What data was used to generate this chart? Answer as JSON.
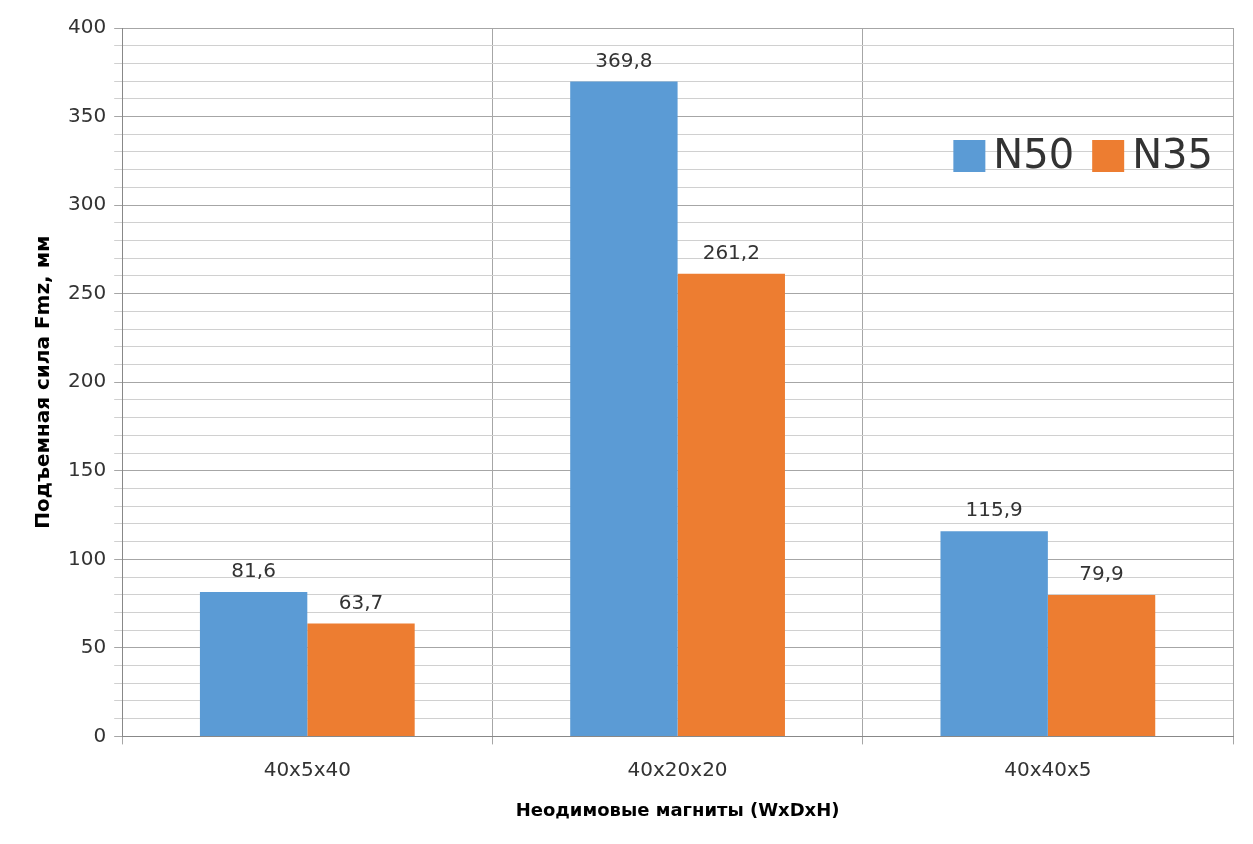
{
  "chart_data": {
    "type": "bar",
    "xlabel": "Неодимовые магниты (WxDxH)",
    "ylabel": "Подъемная сила Fmz, мм",
    "categories": [
      "40x5x40",
      "40x20x20",
      "40x40x5"
    ],
    "series": [
      {
        "name": "N50",
        "color": "#5b9bd5",
        "values": [
          81.6,
          369.8,
          115.9
        ],
        "value_labels": [
          "81,6",
          "369,8",
          "115,9"
        ]
      },
      {
        "name": "N35",
        "color": "#ed7d31",
        "values": [
          63.7,
          261.2,
          79.9
        ],
        "value_labels": [
          "63,7",
          "261,2",
          "79,9"
        ]
      }
    ],
    "ylim": [
      0,
      400
    ],
    "yticks": [
      0,
      {
        "value": 10,
        "label": null
      },
      {
        "value": 20,
        "label": null
      },
      {
        "value": 30,
        "label": null
      },
      {
        "value": 40,
        "label": null
      },
      50,
      {
        "value": 60,
        "label": null
      },
      {
        "value": 70,
        "label": null
      },
      {
        "value": 80,
        "label": null
      },
      {
        "value": 90,
        "label": null
      },
      100,
      {
        "value": 110,
        "label": null
      },
      {
        "value": 120,
        "label": null
      },
      {
        "value": 130,
        "label": null
      },
      {
        "value": 140,
        "label": null
      },
      150,
      {
        "value": 160,
        "label": null
      },
      {
        "value": 170,
        "label": null
      },
      {
        "value": 180,
        "label": null
      },
      {
        "value": 190,
        "label": null
      },
      200,
      {
        "value": 210,
        "label": null
      },
      {
        "value": 220,
        "label": null
      },
      {
        "value": 230,
        "label": null
      },
      {
        "value": 240,
        "label": null
      },
      250,
      {
        "value": 260,
        "label": null
      },
      {
        "value": 270,
        "label": null
      },
      {
        "value": 280,
        "label": null
      },
      {
        "value": 290,
        "label": null
      },
      300,
      {
        "value": 310,
        "label": null
      },
      {
        "value": 320,
        "label": null
      },
      {
        "value": 330,
        "label": null
      },
      {
        "value": 340,
        "label": null
      },
      350,
      {
        "value": 360,
        "label": null
      },
      {
        "value": 370,
        "label": null
      },
      {
        "value": 380,
        "label": null
      },
      {
        "value": 390,
        "label": null
      },
      400
    ],
    "grid": true,
    "legend": "top right"
  }
}
